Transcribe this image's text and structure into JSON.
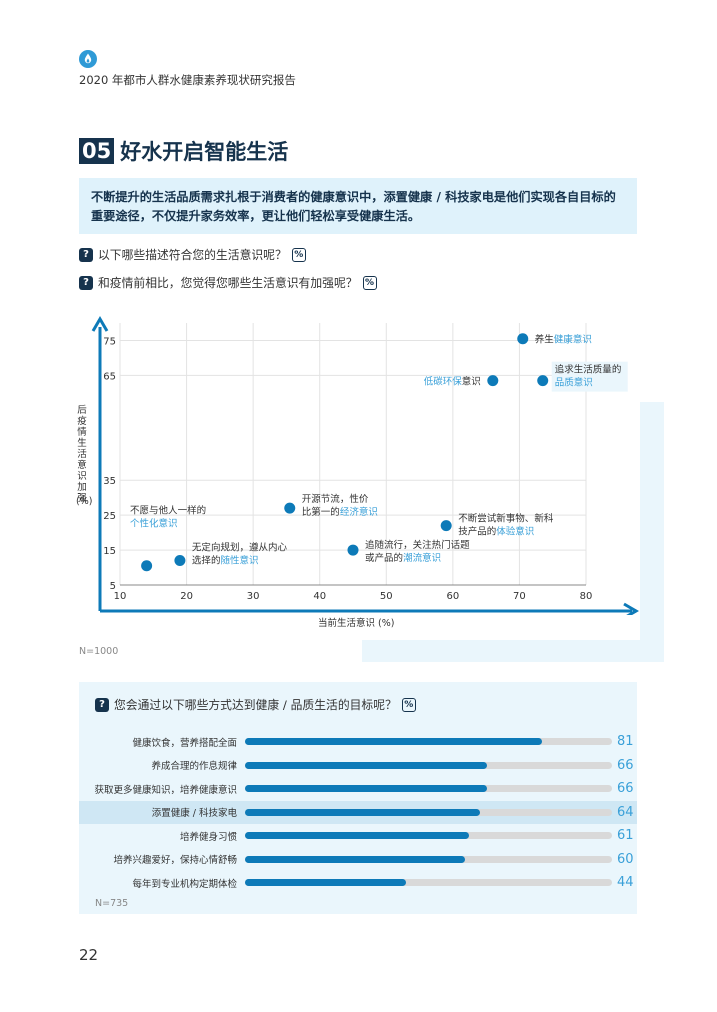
{
  "header": {
    "report_title": "2020 年都市人群水健康素养现状研究报告"
  },
  "section": {
    "number": "05",
    "title": "好水开启智能生活",
    "intro": "不断提升的生活品质需求扎根于消费者的健康意识中，添置健康 / 科技家电是他们实现各自目标的重要途径，不仅提升家务效率，更让他们轻松享受健康生活。"
  },
  "questions": {
    "q1": "以下哪些描述符合您的生活意识呢？",
    "q2": "和疫情前相比，您觉得您哪些生活意识有加强呢？",
    "q3": "您会通过以下哪些方式达到健康 / 品质生活的目标呢？",
    "qmark": "?",
    "pct": "%"
  },
  "colors": {
    "navy": "#16334d",
    "blue": "#0d7ab8",
    "light_blue": "#3aa0d8",
    "panel": "#eaf6fc"
  },
  "chart_data": [
    {
      "type": "scatter",
      "xlabel": "当前生活意识 (%)",
      "ylabel": "后疫情生活意识加强",
      "ylabel_unit": "(%)",
      "xlim": [
        10,
        80
      ],
      "ylim": [
        5,
        80
      ],
      "x_ticks": [
        10,
        20,
        30,
        40,
        50,
        60,
        70,
        80
      ],
      "y_ticks": [
        5,
        15,
        25,
        35,
        65,
        75
      ],
      "grid": true,
      "note": "N=1000",
      "points": [
        {
          "x": 70.5,
          "y": 75.5,
          "label_pre": "养生",
          "label_hl": "健康意识",
          "label_post": ""
        },
        {
          "x": 73.5,
          "y": 63.5,
          "label_pre": "追求生活质量的",
          "label_hl": "品质意识",
          "label_post": ""
        },
        {
          "x": 66,
          "y": 63.5,
          "label_pre": "",
          "label_hl": "低碳环保",
          "label_post": "意识"
        },
        {
          "x": 35.5,
          "y": 27,
          "label_pre": "开源节流，性价比第一的",
          "label_hl": "经济意识",
          "label_post": ""
        },
        {
          "x": 59,
          "y": 22,
          "label_pre": "不断尝试新事物、新科技产品的",
          "label_hl": "体验意识",
          "label_post": ""
        },
        {
          "x": 45,
          "y": 15,
          "label_pre": "追随流行，关注热门话题或产品的",
          "label_hl": "潮流意识",
          "label_post": ""
        },
        {
          "x": 19,
          "y": 12,
          "label_pre": "无定向规划，遵从内心选择的",
          "label_hl": "随性意识",
          "label_post": ""
        },
        {
          "x": 14,
          "y": 10.5,
          "label_pre": "",
          "label_hl": "",
          "label_post": ""
        }
      ],
      "extra_label": {
        "pre": "不愿与他人一样的",
        "hl": "个性化意识"
      }
    },
    {
      "type": "bar",
      "note": "N=735",
      "categories": [
        "健康饮食，营养搭配全面",
        "养成合理的作息规律",
        "获取更多健康知识，培养健康意识",
        "添置健康 / 科技家电",
        "培养健身习惯",
        "培养兴趣爱好，保持心情舒畅",
        "每年到专业机构定期体检"
      ],
      "values": [
        81,
        66,
        66,
        64,
        61,
        60,
        44
      ],
      "highlight_index": 3,
      "max": 100
    }
  ],
  "page": {
    "number": "22"
  }
}
